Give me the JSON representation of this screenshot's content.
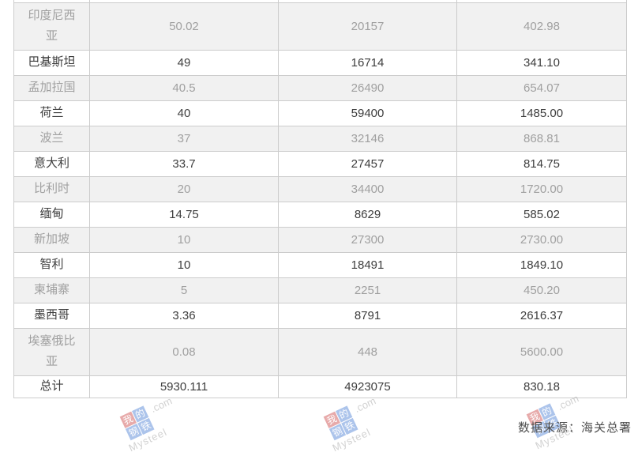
{
  "chart_data": {
    "type": "table",
    "header_visible": false,
    "rows": [
      {
        "label": "印度尼西亚",
        "values": [
          "50.02",
          "20157",
          "402.98"
        ]
      },
      {
        "label": "巴基斯坦",
        "values": [
          "49",
          "16714",
          "341.10"
        ]
      },
      {
        "label": "孟加拉国",
        "values": [
          "40.5",
          "26490",
          "654.07"
        ]
      },
      {
        "label": "荷兰",
        "values": [
          "40",
          "59400",
          "1485.00"
        ]
      },
      {
        "label": "波兰",
        "values": [
          "37",
          "32146",
          "868.81"
        ]
      },
      {
        "label": "意大利",
        "values": [
          "33.7",
          "27457",
          "814.75"
        ]
      },
      {
        "label": "比利时",
        "values": [
          "20",
          "34400",
          "1720.00"
        ]
      },
      {
        "label": "缅甸",
        "values": [
          "14.75",
          "8629",
          "585.02"
        ]
      },
      {
        "label": "新加坡",
        "values": [
          "10",
          "27300",
          "2730.00"
        ]
      },
      {
        "label": "智利",
        "values": [
          "10",
          "18491",
          "1849.10"
        ]
      },
      {
        "label": "柬埔寨",
        "values": [
          "5",
          "2251",
          "450.20"
        ]
      },
      {
        "label": "墨西哥",
        "values": [
          "3.36",
          "8791",
          "2616.37"
        ]
      },
      {
        "label": "埃塞俄比亚",
        "values": [
          "0.08",
          "448",
          "5600.00"
        ]
      },
      {
        "label": "总计",
        "values": [
          "5930.111",
          "4923075",
          "830.18"
        ]
      }
    ],
    "source": "数据来源：海关总署"
  },
  "footer": {
    "source_label": "数据来源：海关总署"
  },
  "watermark": {
    "squares": [
      "我",
      "的",
      "钢",
      "铁"
    ],
    "domain": ".com",
    "brand": "Mysteel"
  },
  "colors": {
    "row_alt_bg": "#f1f1f1",
    "row_bg": "#ffffff",
    "border": "#cccccc",
    "text_dark": "#3d3d3d",
    "text_light": "#a0a0a0",
    "footer_text": "#4d4d4d",
    "watermark_red": "#cc4444",
    "watermark_blue": "#4a7dd4"
  }
}
